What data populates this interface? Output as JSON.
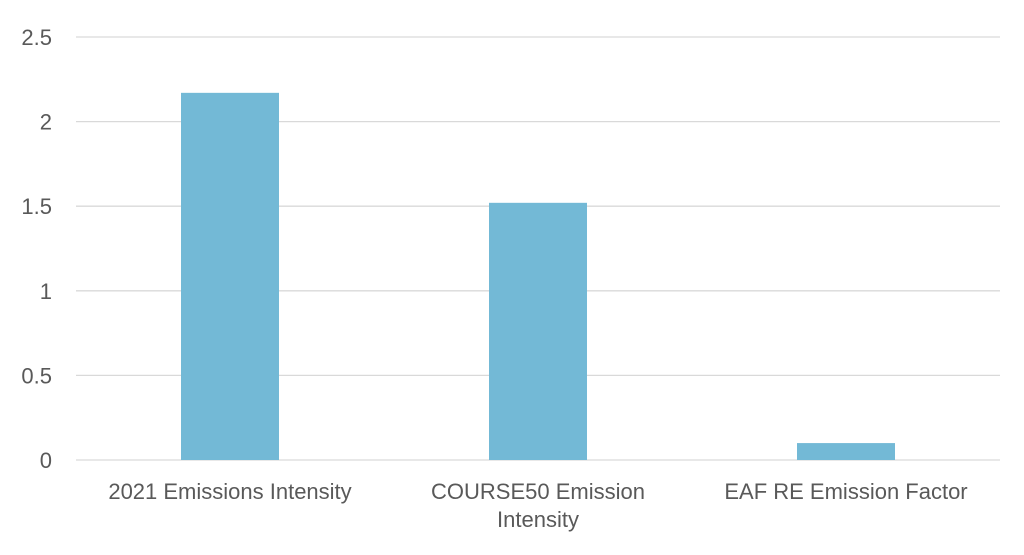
{
  "chart_data": {
    "type": "bar",
    "title": "",
    "xlabel": "",
    "ylabel": "",
    "categories": [
      "2021 Emissions Intensity",
      "COURSE50 Emission Intensity",
      "EAF RE Emission Factor"
    ],
    "values": [
      2.17,
      1.52,
      0.1
    ],
    "ylim": [
      0,
      2.5
    ],
    "yticks": [
      0,
      0.5,
      1,
      1.5,
      2,
      2.5
    ],
    "ytick_labels": [
      "0",
      "0.5",
      "1",
      "1.5",
      "2",
      "2.5"
    ],
    "grid": true,
    "legend": "none",
    "colors": {
      "bar": "#73B9D6",
      "grid": "#D9D9D9",
      "text": "#595959"
    }
  }
}
